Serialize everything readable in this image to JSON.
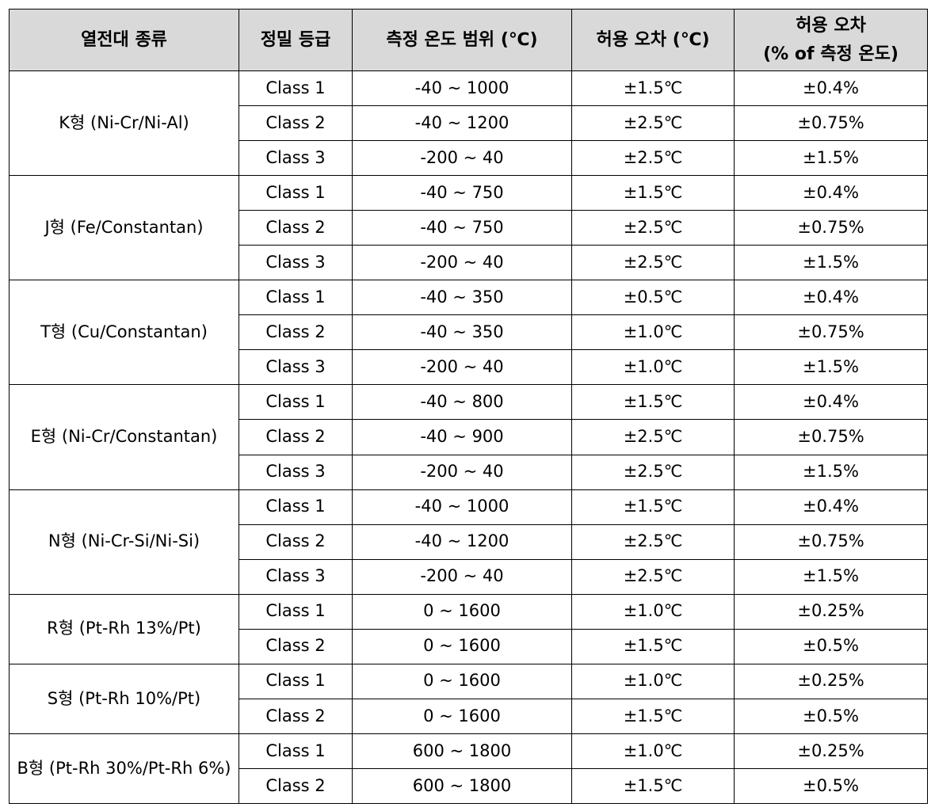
{
  "headers": [
    "열전대 종류",
    "정밀 등급",
    "측정 온도 범위 (℃)",
    "허용 오차 (℃)",
    "허용 오차",
    "(% of 측정 온도)"
  ],
  "groups": [
    {
      "type": "K형 (Ni-Cr/Ni-Al)",
      "rows": [
        {
          "cls": "Class 1",
          "range": "-40 ~ 1000",
          "tol": "±1.5℃",
          "pct": "±0.4%"
        },
        {
          "cls": "Class 2",
          "range": "-40 ~ 1200",
          "tol": "±2.5℃",
          "pct": "±0.75%"
        },
        {
          "cls": "Class 3",
          "range": "-200 ~ 40",
          "tol": "±2.5℃",
          "pct": "±1.5%"
        }
      ]
    },
    {
      "type": "J형 (Fe/Constantan)",
      "rows": [
        {
          "cls": "Class 1",
          "range": "-40 ~ 750",
          "tol": "±1.5℃",
          "pct": "±0.4%"
        },
        {
          "cls": "Class 2",
          "range": "-40 ~ 750",
          "tol": "±2.5℃",
          "pct": "±0.75%"
        },
        {
          "cls": "Class 3",
          "range": "-200 ~ 40",
          "tol": "±2.5℃",
          "pct": "±1.5%"
        }
      ]
    },
    {
      "type": "T형 (Cu/Constantan)",
      "rows": [
        {
          "cls": "Class 1",
          "range": "-40 ~ 350",
          "tol": "±0.5℃",
          "pct": "±0.4%"
        },
        {
          "cls": "Class 2",
          "range": "-40 ~ 350",
          "tol": "±1.0℃",
          "pct": "±0.75%"
        },
        {
          "cls": "Class 3",
          "range": "-200 ~ 40",
          "tol": "±1.0℃",
          "pct": "±1.5%"
        }
      ]
    },
    {
      "type": "E형 (Ni-Cr/Constantan)",
      "rows": [
        {
          "cls": "Class 1",
          "range": "-40 ~ 800",
          "tol": "±1.5℃",
          "pct": "±0.4%"
        },
        {
          "cls": "Class 2",
          "range": "-40 ~ 900",
          "tol": "±2.5℃",
          "pct": "±0.75%"
        },
        {
          "cls": "Class 3",
          "range": "-200 ~ 40",
          "tol": "±2.5℃",
          "pct": "±1.5%"
        }
      ]
    },
    {
      "type": "N형 (Ni-Cr-Si/Ni-Si)",
      "rows": [
        {
          "cls": "Class 1",
          "range": "-40 ~ 1000",
          "tol": "±1.5℃",
          "pct": "±0.4%"
        },
        {
          "cls": "Class 2",
          "range": "-40 ~ 1200",
          "tol": "±2.5℃",
          "pct": "±0.75%"
        },
        {
          "cls": "Class 3",
          "range": "-200 ~ 40",
          "tol": "±2.5℃",
          "pct": "±1.5%"
        }
      ]
    },
    {
      "type": "R형 (Pt-Rh 13%/Pt)",
      "rows": [
        {
          "cls": "Class 1",
          "range": "0 ~ 1600",
          "tol": "±1.0℃",
          "pct": "±0.25%"
        },
        {
          "cls": "Class 2",
          "range": "0 ~ 1600",
          "tol": "±1.5℃",
          "pct": "±0.5%"
        }
      ]
    },
    {
      "type": "S형 (Pt-Rh 10%/Pt)",
      "rows": [
        {
          "cls": "Class 1",
          "range": "0 ~ 1600",
          "tol": "±1.0℃",
          "pct": "±0.25%"
        },
        {
          "cls": "Class 2",
          "range": "0 ~ 1600",
          "tol": "±1.5℃",
          "pct": "±0.5%"
        }
      ]
    },
    {
      "type": "B형 (Pt-Rh 30%/Pt-Rh 6%)",
      "rows": [
        {
          "cls": "Class 1",
          "range": "600 ~ 1800",
          "tol": "±1.0℃",
          "pct": "±0.25%"
        },
        {
          "cls": "Class 2",
          "range": "600 ~ 1800",
          "tol": "±1.5℃",
          "pct": "±0.5%"
        }
      ]
    }
  ]
}
